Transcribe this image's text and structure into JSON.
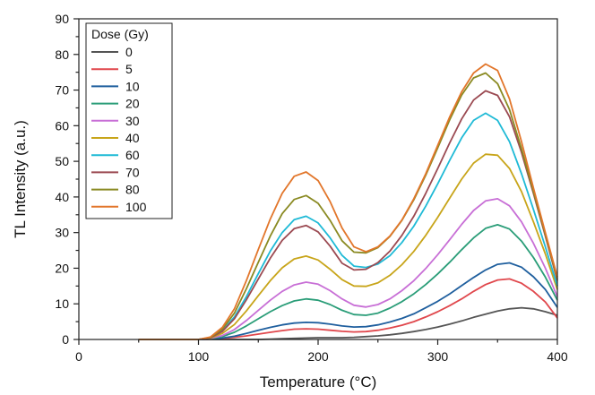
{
  "chart_data": {
    "type": "line",
    "xlabel": "Temperature (°C)",
    "ylabel": "TL Intensity (a.u.)",
    "xlim": [
      0,
      400
    ],
    "ylim": [
      0,
      90
    ],
    "xticks": [
      0,
      100,
      200,
      300,
      400
    ],
    "yticks": [
      0,
      10,
      20,
      30,
      40,
      50,
      60,
      70,
      80,
      90
    ],
    "grid": false,
    "legend": {
      "title": "Dose (Gy)",
      "placement": "top-left"
    },
    "x": [
      50,
      100,
      110,
      120,
      130,
      140,
      150,
      160,
      170,
      180,
      190,
      200,
      210,
      220,
      230,
      240,
      250,
      260,
      270,
      280,
      290,
      300,
      310,
      320,
      330,
      340,
      350,
      360,
      370,
      380,
      390,
      400
    ],
    "series": [
      {
        "name": "0",
        "color": "#555555",
        "values": [
          0,
          0,
          0,
          0,
          0,
          0,
          0,
          0.1,
          0.2,
          0.3,
          0.4,
          0.5,
          0.5,
          0.5,
          0.6,
          0.8,
          1.0,
          1.3,
          1.7,
          2.2,
          2.8,
          3.5,
          4.3,
          5.2,
          6.2,
          7.1,
          8.0,
          8.6,
          8.9,
          8.6,
          7.8,
          6.8
        ]
      },
      {
        "name": "5",
        "color": "#e0474c",
        "values": [
          0,
          0,
          0.1,
          0.3,
          0.6,
          1.0,
          1.5,
          2.0,
          2.5,
          2.9,
          3.0,
          2.9,
          2.6,
          2.3,
          2.1,
          2.2,
          2.6,
          3.2,
          4.0,
          5.0,
          6.3,
          7.8,
          9.5,
          11.4,
          13.5,
          15.4,
          16.7,
          17.0,
          15.8,
          13.5,
          10.5,
          6.0
        ]
      },
      {
        "name": "10",
        "color": "#1f5f9e",
        "values": [
          0,
          0,
          0.1,
          0.4,
          0.9,
          1.7,
          2.6,
          3.4,
          4.1,
          4.6,
          4.8,
          4.7,
          4.3,
          3.8,
          3.5,
          3.6,
          4.1,
          4.9,
          5.9,
          7.2,
          8.9,
          10.7,
          12.8,
          15.1,
          17.4,
          19.5,
          21.1,
          21.5,
          20.3,
          17.6,
          14.0,
          9.0
        ]
      },
      {
        "name": "20",
        "color": "#2a9d78",
        "values": [
          0,
          0,
          0.2,
          0.8,
          2.0,
          3.8,
          5.8,
          7.8,
          9.5,
          10.8,
          11.4,
          11.0,
          9.8,
          8.2,
          7.0,
          6.8,
          7.4,
          8.8,
          10.6,
          12.8,
          15.4,
          18.4,
          21.7,
          25.2,
          28.5,
          31.2,
          32.2,
          31.0,
          27.6,
          23.0,
          17.5,
          11.0
        ]
      },
      {
        "name": "30",
        "color": "#c86fd6",
        "values": [
          0,
          0,
          0.3,
          1.1,
          2.8,
          5.3,
          8.2,
          11.0,
          13.5,
          15.3,
          16.1,
          15.5,
          13.7,
          11.4,
          9.6,
          9.1,
          9.8,
          11.4,
          13.7,
          16.5,
          19.9,
          23.8,
          28.0,
          32.3,
          36.2,
          38.9,
          39.5,
          37.5,
          33.0,
          27.0,
          20.0,
          12.0
        ]
      },
      {
        "name": "40",
        "color": "#c8a51a",
        "values": [
          0,
          0,
          0.4,
          1.7,
          4.2,
          8.0,
          12.3,
          16.5,
          20.1,
          22.6,
          23.4,
          22.3,
          19.7,
          16.8,
          15.0,
          14.9,
          15.9,
          18.0,
          21.0,
          24.7,
          29.2,
          34.3,
          39.7,
          45.0,
          49.5,
          52.0,
          51.7,
          48.0,
          41.5,
          33.0,
          24.0,
          14.0
        ]
      },
      {
        "name": "60",
        "color": "#1fbad6",
        "values": [
          0,
          0,
          0.5,
          2.5,
          6.3,
          12.0,
          18.5,
          24.8,
          30.0,
          33.6,
          34.6,
          32.7,
          28.5,
          23.6,
          20.6,
          20.2,
          21.2,
          23.5,
          27.2,
          31.8,
          37.4,
          43.7,
          50.3,
          56.6,
          61.5,
          63.5,
          61.5,
          55.5,
          46.5,
          36.5,
          26.0,
          15.0
        ]
      },
      {
        "name": "70",
        "color": "#9b4a52",
        "values": [
          0,
          0,
          0.5,
          2.3,
          5.8,
          11.1,
          17.0,
          22.8,
          27.8,
          31.1,
          32.0,
          30.2,
          26.2,
          21.4,
          19.5,
          19.7,
          21.6,
          24.8,
          29.2,
          34.6,
          41.0,
          48.0,
          55.2,
          61.9,
          67.2,
          69.8,
          68.5,
          62.5,
          52.5,
          41.0,
          29.0,
          16.5
        ]
      },
      {
        "name": "80",
        "color": "#8a8a22",
        "values": [
          0,
          0,
          0.6,
          2.9,
          7.4,
          14.2,
          21.7,
          29.0,
          35.3,
          39.3,
          40.4,
          38.2,
          33.4,
          27.7,
          24.5,
          24.3,
          25.8,
          28.9,
          33.4,
          39.2,
          46.1,
          53.8,
          61.7,
          68.6,
          73.4,
          74.8,
          71.8,
          64.5,
          53.5,
          41.5,
          29.5,
          17.0
        ]
      },
      {
        "name": "100",
        "color": "#e2762b",
        "values": [
          0,
          0,
          0.7,
          3.4,
          8.6,
          16.5,
          25.3,
          33.8,
          41.0,
          45.8,
          47.0,
          44.6,
          38.7,
          31.3,
          26.0,
          24.6,
          26.0,
          29.0,
          33.5,
          39.5,
          46.5,
          54.5,
          62.5,
          69.5,
          74.8,
          77.3,
          75.5,
          67.5,
          55.5,
          42.5,
          30.0,
          17.5
        ]
      }
    ]
  }
}
